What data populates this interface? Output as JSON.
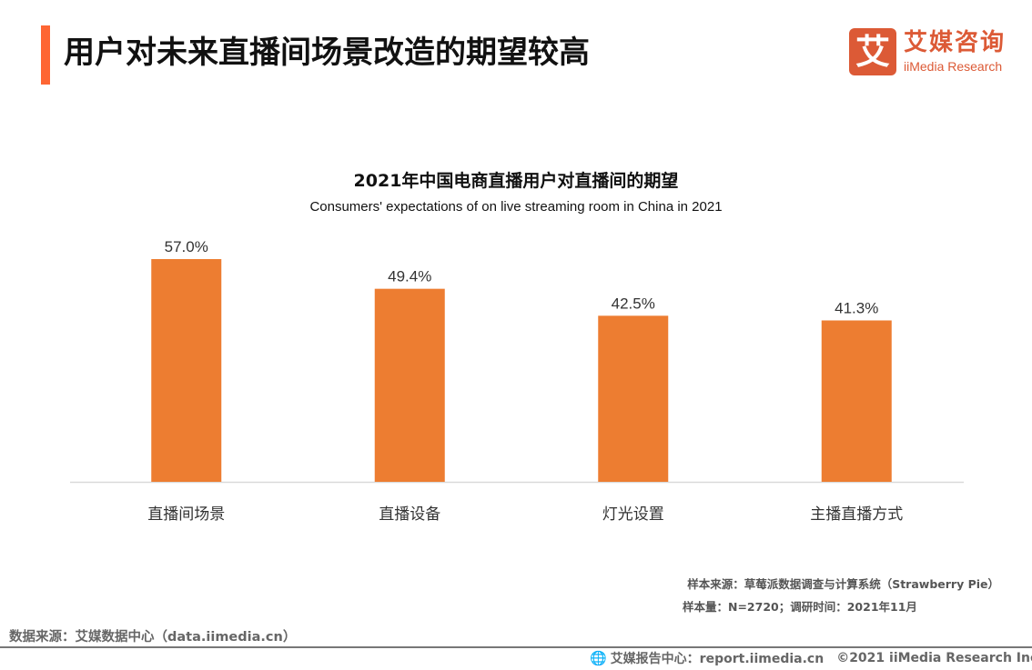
{
  "header": {
    "title": "用户对未来直播间场景改造的期望较高",
    "accent_color": "#fe6633"
  },
  "logo": {
    "mark": "艾",
    "name_cn": "艾媒咨询",
    "name_en": "iiMedia Research",
    "brand_color": "#dc5a36"
  },
  "chart_data": {
    "type": "bar",
    "title": "2021年中国电商直播用户对直播间的期望",
    "subtitle": "Consumers' expectations of on live streaming room in China in 2021",
    "categories": [
      "直播间场景",
      "直播设备",
      "灯光设置",
      "主播直播方式"
    ],
    "values": [
      57.0,
      49.4,
      42.5,
      41.3
    ],
    "value_labels": [
      "57.0%",
      "49.4%",
      "42.5%",
      "41.3%"
    ],
    "unit": "%",
    "xlabel": "",
    "ylabel": "",
    "ylim": [
      0,
      57.0
    ],
    "grid": false,
    "legend": "none",
    "bar_color": "#ed7d31"
  },
  "notes": {
    "sample_source": "样本来源：草莓派数据调查与计算系统（Strawberry Pie）",
    "sample_size": "样本量：N=2720；调研时间：2021年11月"
  },
  "source": "数据来源：艾媒数据中心（data.iimedia.cn）",
  "footer": {
    "globe_icon": "globe-icon",
    "report_center": "艾媒报告中心：report.iimedia.cn",
    "copyright": "©2021  iiMedia Research Inc"
  }
}
